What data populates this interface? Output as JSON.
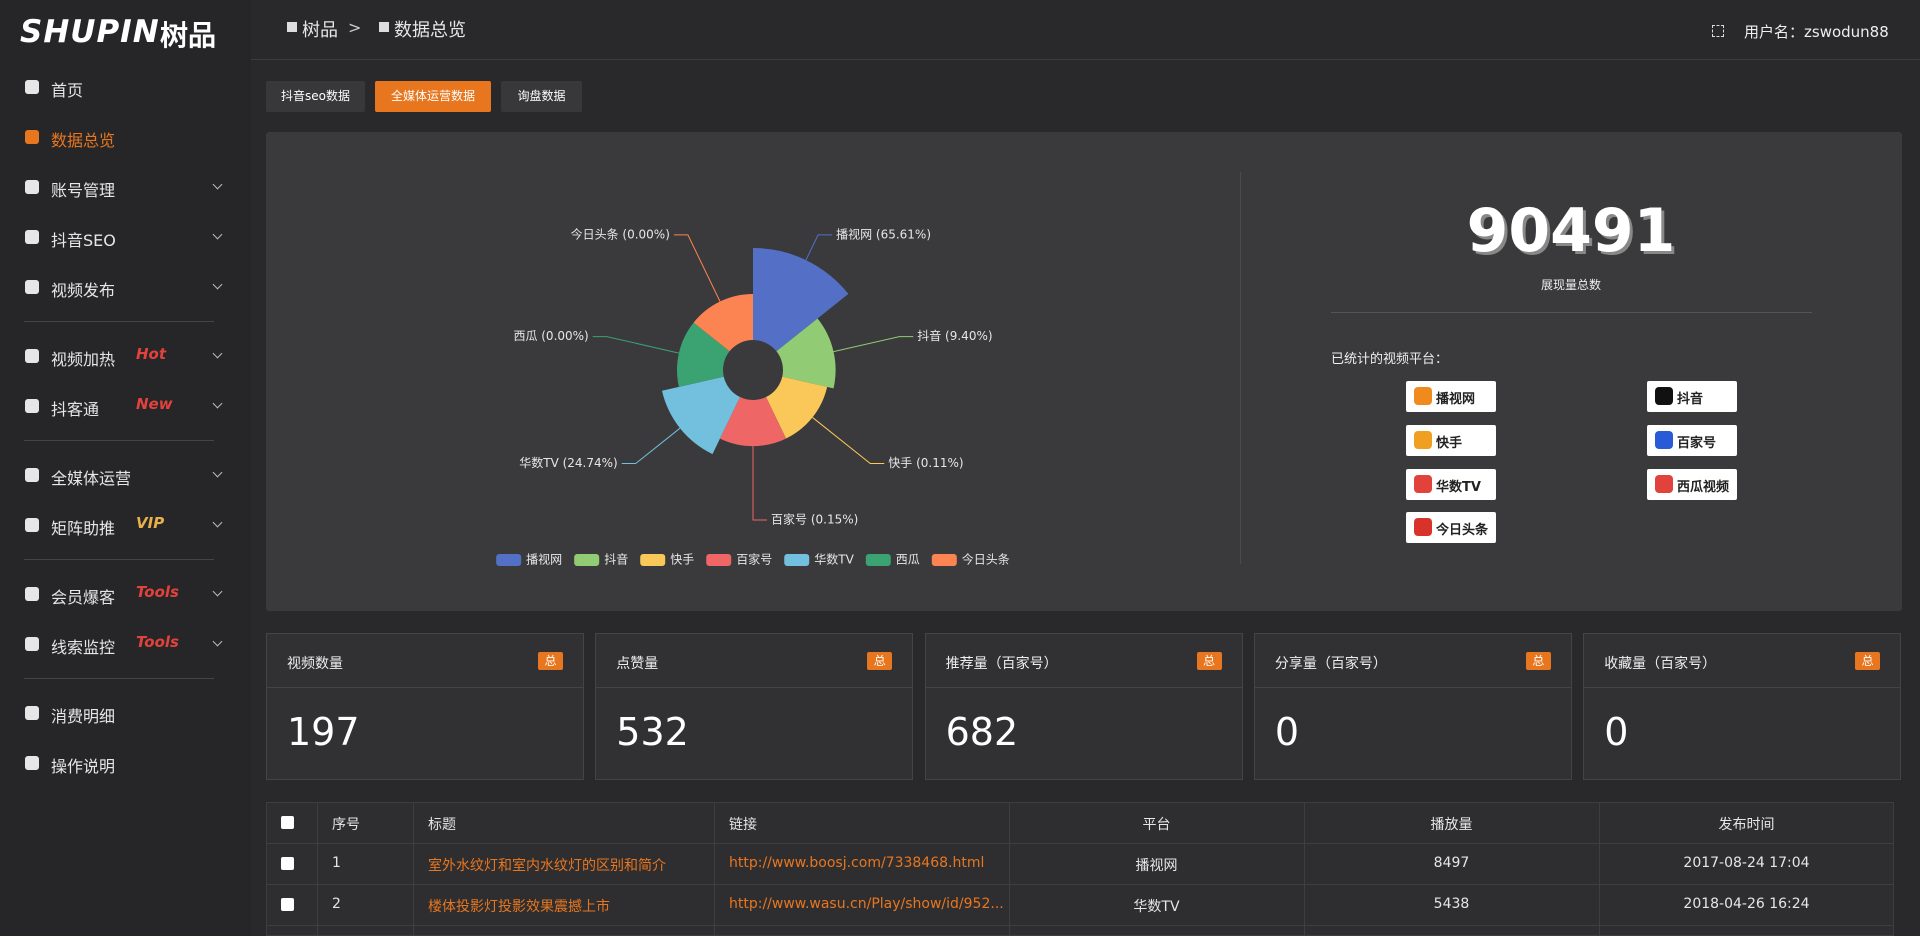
{
  "logo": {
    "text": "SHUPIN",
    "cn": "树品"
  },
  "breadcrumb": {
    "items": [
      "树品",
      "数据总览"
    ],
    "separator": ">"
  },
  "user": "用户名：zswodun88",
  "sidebar": {
    "groups": [
      [
        {
          "label": "首页"
        },
        {
          "label": "数据总览",
          "active": true
        },
        {
          "label": "账号管理",
          "expand": true
        },
        {
          "label": "抖音SEO",
          "expand": true
        },
        {
          "label": "视频发布",
          "expand": true
        }
      ],
      [
        {
          "label": "视频加热",
          "badge": "Hot",
          "badge_color": "#e2423c",
          "expand": true
        },
        {
          "label": "抖客通",
          "badge": "New",
          "badge_color": "#e2423c",
          "expand": true
        }
      ],
      [
        {
          "label": "全媒体运营",
          "expand": true
        },
        {
          "label": "矩阵助推",
          "badge": "VIP",
          "badge_color": "#e6b04a",
          "expand": true
        }
      ],
      [
        {
          "label": "会员爆客",
          "badge": "Tools",
          "badge_color": "#e2423c",
          "expand": true
        },
        {
          "label": "线索监控",
          "badge": "Tools",
          "badge_color": "#e2423c",
          "expand": true
        }
      ],
      [
        {
          "label": "消费明细"
        },
        {
          "label": "操作说明"
        }
      ]
    ]
  },
  "tabs": [
    {
      "label": "抖音seo数据"
    },
    {
      "label": "全媒体运营数据",
      "active": true
    },
    {
      "label": "询盘数据"
    }
  ],
  "chart_data": {
    "type": "pie",
    "rose": true,
    "categories": [
      "播视网",
      "抖音",
      "快手",
      "百家号",
      "华数TV",
      "西瓜",
      "今日头条"
    ],
    "values": [
      65.61,
      9.4,
      0.11,
      0.15,
      24.74,
      0.0,
      0.0
    ],
    "value_labels": [
      "播视网 (65.61%)",
      "抖音 (9.40%)",
      "快手 (0.11%)",
      "百家号 (0.15%)",
      "华数TV (24.74%)",
      "西瓜 (0.00%)",
      "今日头条 (0.00%)"
    ],
    "colors": [
      "#5470c6",
      "#91cc75",
      "#fac858",
      "#ee6666",
      "#73c0de",
      "#3ba272",
      "#fc8452"
    ],
    "legend": "bottom"
  },
  "summary": {
    "total": 90491,
    "total_label": "展现量总数",
    "platforms_label": "已统计的视频平台：",
    "platforms": [
      "播视网",
      "抖音",
      "快手",
      "百家号",
      "华数TV",
      "西瓜视频",
      "今日头条"
    ]
  },
  "stats": [
    {
      "label": "视频数量",
      "badge": "总",
      "value": 197
    },
    {
      "label": "点赞量",
      "badge": "总",
      "value": 532
    },
    {
      "label": "推荐量（百家号）",
      "badge": "总",
      "value": 682
    },
    {
      "label": "分享量（百家号）",
      "badge": "总",
      "value": 0
    },
    {
      "label": "收藏量（百家号）",
      "badge": "总",
      "value": 0
    }
  ],
  "table": {
    "columns": [
      "序号",
      "标题",
      "链接",
      "平台",
      "播放量",
      "发布时间"
    ],
    "rows": [
      [
        1,
        "室外水纹灯和室内水纹灯的区别和简介",
        "http://www.boosj.com/7338468.html",
        "播视网",
        8497,
        "2017-08-24 17:04"
      ],
      [
        2,
        "楼体投影灯投影效果震撼上市",
        "http://www.wasu.cn/Play/show/id/952...",
        "华数TV",
        5438,
        "2018-04-26 16:24"
      ]
    ]
  }
}
